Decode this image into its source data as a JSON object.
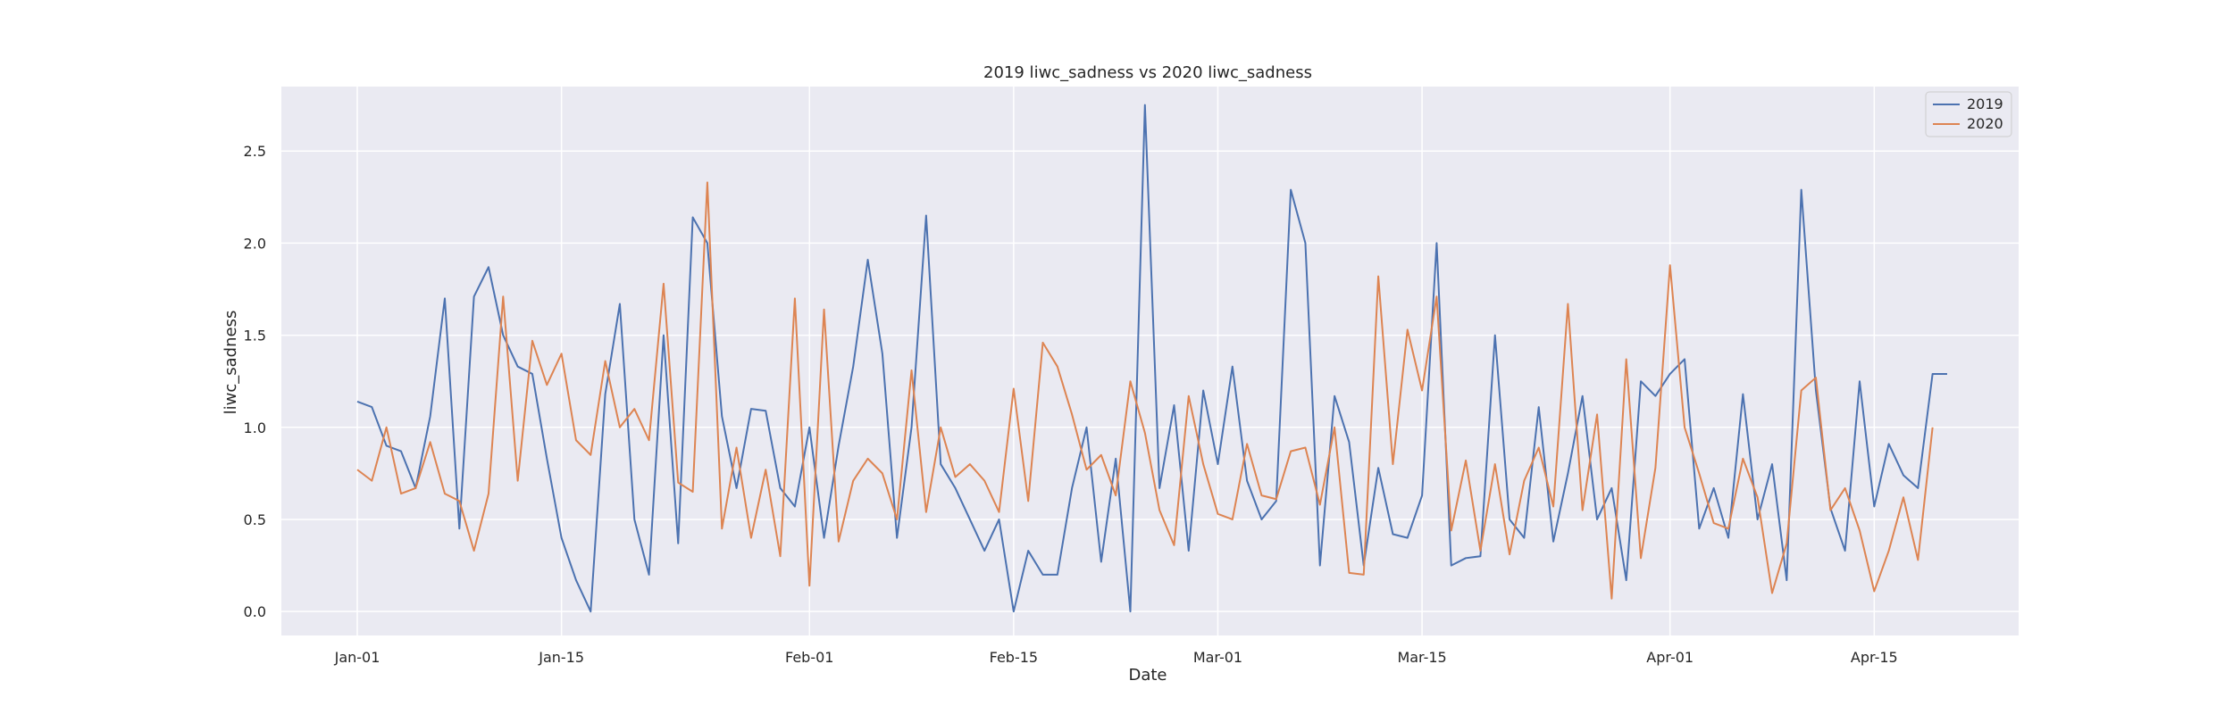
{
  "chart_data": {
    "type": "line",
    "title": "2019 liwc_sadness vs 2020 liwc_sadness",
    "xlabel": "Date",
    "ylabel": "liwc_sadness",
    "x_start": "Jan-01",
    "x_tick_labels": [
      "Jan-01",
      "Jan-15",
      "Feb-01",
      "Feb-15",
      "Mar-01",
      "Mar-15",
      "Apr-01",
      "Apr-15"
    ],
    "y_tick_labels": [
      "0.0",
      "0.5",
      "1.0",
      "1.5",
      "2.0",
      "2.5"
    ],
    "ylim": [
      -0.13,
      2.85
    ],
    "grid": true,
    "legend_position": "top-right",
    "series": [
      {
        "name": "2019",
        "color": "#4c72b0",
        "values": [
          1.14,
          1.11,
          0.9,
          0.87,
          0.67,
          1.06,
          1.7,
          0.45,
          1.71,
          1.87,
          1.5,
          1.33,
          1.29,
          0.83,
          0.4,
          0.17,
          0.0,
          1.18,
          1.67,
          0.5,
          0.2,
          1.5,
          0.37,
          2.14,
          2.0,
          1.06,
          0.67,
          1.1,
          1.09,
          0.67,
          0.57,
          1.0,
          0.4,
          0.9,
          1.33,
          1.91,
          1.4,
          0.4,
          1.0,
          2.15,
          0.8,
          0.67,
          0.5,
          0.33,
          0.5,
          0.0,
          0.33,
          0.2,
          0.2,
          0.67,
          1.0,
          0.27,
          0.83,
          0.0,
          2.75,
          0.67,
          1.12,
          0.33,
          1.2,
          0.8,
          1.33,
          0.71,
          0.5,
          0.6,
          2.29,
          2.0,
          0.25,
          1.17,
          0.92,
          0.25,
          0.78,
          0.42,
          0.4,
          0.63,
          2.0,
          0.25,
          0.29,
          0.3,
          1.5,
          0.5,
          0.4,
          1.11,
          0.38,
          0.75,
          1.17,
          0.5,
          0.67,
          0.17,
          1.25,
          1.17,
          1.29,
          1.37,
          0.45,
          0.67,
          0.4,
          1.18,
          0.5,
          0.8,
          0.17,
          2.29,
          1.2,
          0.56,
          0.33,
          1.25,
          0.57,
          0.91,
          0.74,
          0.67,
          1.29,
          1.29
        ]
      },
      {
        "name": "2020",
        "color": "#dd8452",
        "values": [
          0.77,
          0.71,
          1.0,
          0.64,
          0.67,
          0.92,
          0.64,
          0.6,
          0.33,
          0.64,
          1.71,
          0.71,
          1.47,
          1.23,
          1.4,
          0.93,
          0.85,
          1.36,
          1.0,
          1.1,
          0.93,
          1.78,
          0.7,
          0.65,
          2.33,
          0.45,
          0.89,
          0.4,
          0.77,
          0.3,
          1.7,
          0.14,
          1.64,
          0.38,
          0.71,
          0.83,
          0.75,
          0.5,
          1.31,
          0.54,
          1.0,
          0.73,
          0.8,
          0.71,
          0.54,
          1.21,
          0.6,
          1.46,
          1.33,
          1.07,
          0.77,
          0.85,
          0.63,
          1.25,
          0.97,
          0.55,
          0.36,
          1.17,
          0.8,
          0.53,
          0.5,
          0.91,
          0.63,
          0.61,
          0.87,
          0.89,
          0.58,
          1.0,
          0.21,
          0.2,
          1.82,
          0.8,
          1.53,
          1.2,
          1.71,
          0.44,
          0.82,
          0.33,
          0.8,
          0.31,
          0.71,
          0.89,
          0.57,
          1.67,
          0.55,
          1.07,
          0.07,
          1.37,
          0.29,
          0.78,
          1.88,
          1.0,
          0.75,
          0.48,
          0.45,
          0.83,
          0.62,
          0.1,
          0.37,
          1.2,
          1.27,
          0.55,
          0.67,
          0.44,
          0.11,
          0.33,
          0.62,
          0.28,
          1.0
        ]
      }
    ]
  }
}
